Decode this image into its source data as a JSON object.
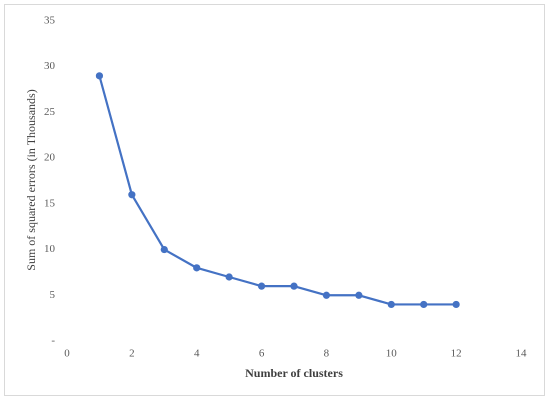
{
  "chart_data": {
    "type": "line",
    "x_label": "Number of clusters",
    "y_label": "Sum of squared errors (in Thousands)",
    "x": [
      1,
      2,
      3,
      4,
      5,
      6,
      7,
      8,
      9,
      10,
      11,
      12
    ],
    "values": [
      29,
      16,
      10,
      8,
      7,
      6,
      6,
      5,
      5,
      4,
      4,
      4
    ],
    "color": "#4472c4",
    "xlim": [
      0,
      14
    ],
    "xticks": [
      0,
      2,
      4,
      6,
      8,
      10,
      12,
      14
    ],
    "ylim": [
      0,
      35
    ],
    "yticks": [
      {
        "value": 0,
        "label": "-"
      },
      5,
      10,
      15,
      20,
      25,
      30,
      35
    ],
    "grid": false,
    "markers": true
  }
}
